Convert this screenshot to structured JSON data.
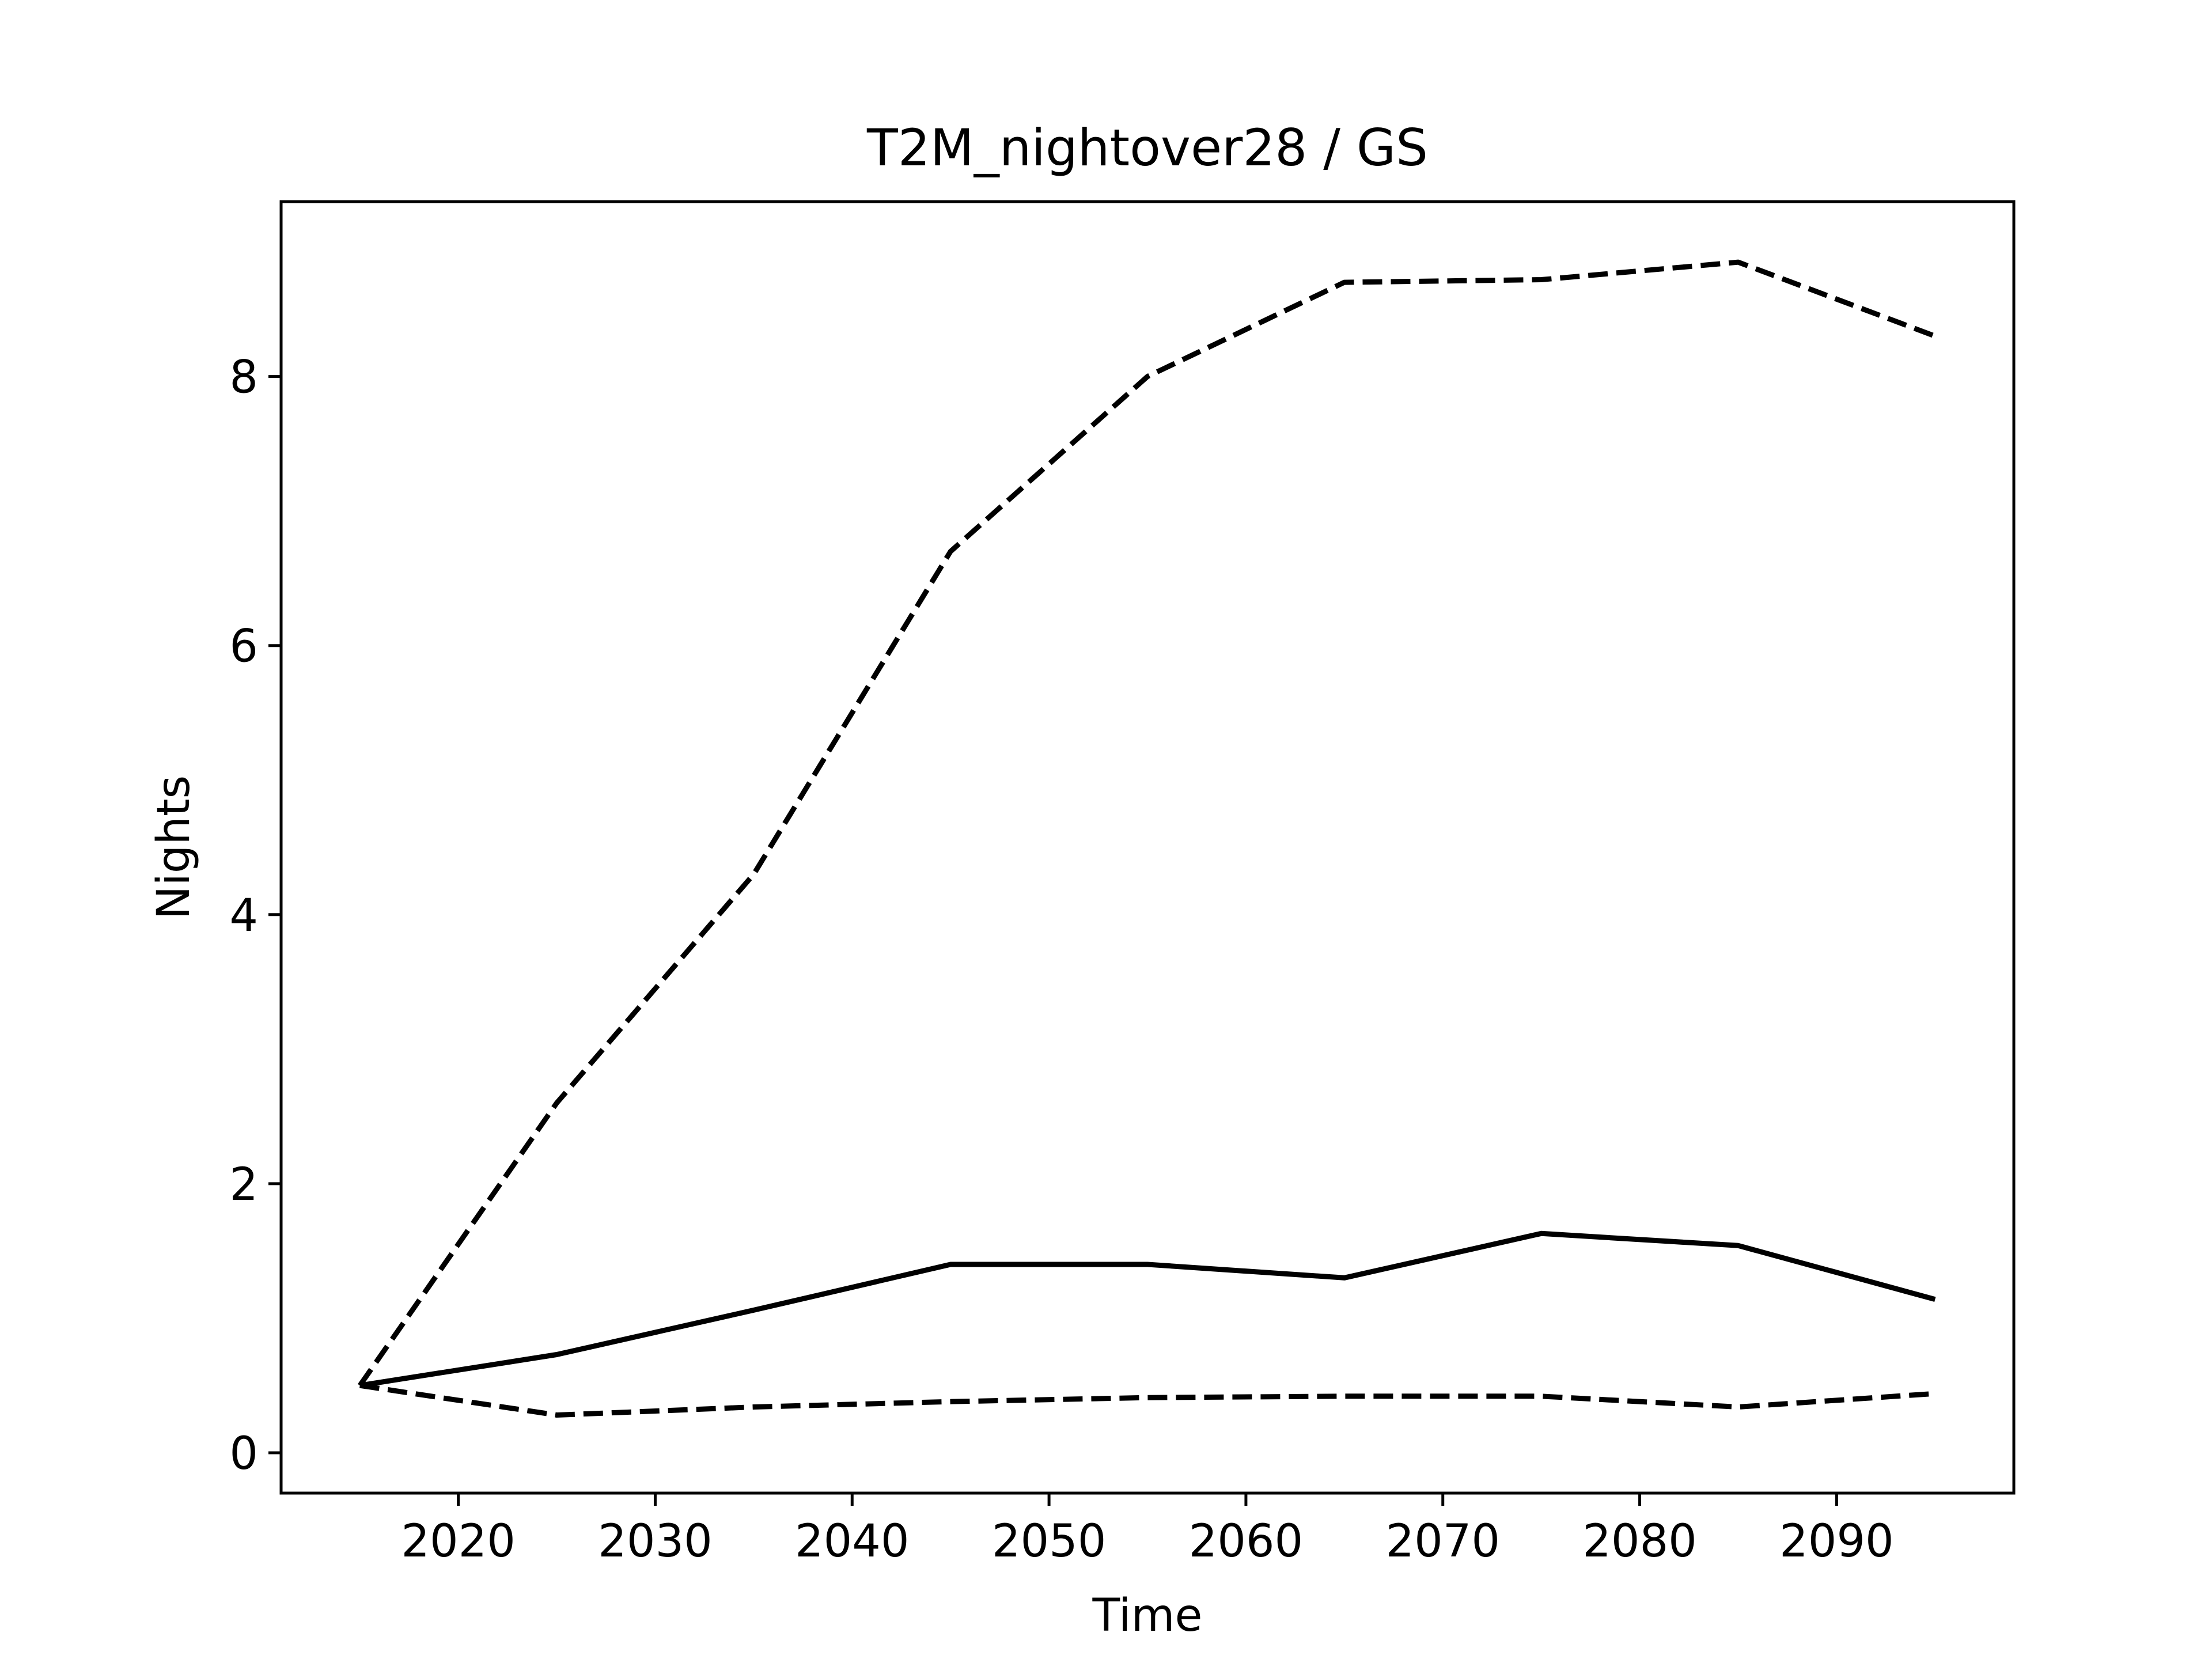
{
  "chart_data": {
    "type": "line",
    "title": "T2M_nightover28 / GS",
    "xlabel": "Time",
    "ylabel": "Nights",
    "xlim": [
      2011,
      2099
    ],
    "ylim": [
      -0.3,
      9.3
    ],
    "xticks": [
      2020,
      2030,
      2040,
      2050,
      2060,
      2070,
      2080,
      2090
    ],
    "yticks": [
      0,
      2,
      4,
      6,
      8
    ],
    "grid": false,
    "legend": false,
    "line_color": "#000000",
    "series": [
      {
        "style": "solid",
        "x": [
          2015,
          2025,
          2035,
          2045,
          2055,
          2065,
          2075,
          2085,
          2095
        ],
        "y": [
          0.5,
          0.73,
          1.06,
          1.4,
          1.4,
          1.3,
          1.63,
          1.54,
          1.14
        ]
      },
      {
        "style": "dashed",
        "x": [
          2015,
          2025,
          2035,
          2045,
          2055,
          2065,
          2075,
          2085,
          2095
        ],
        "y": [
          0.5,
          2.6,
          4.3,
          6.7,
          8.0,
          8.7,
          8.72,
          8.85,
          8.3
        ]
      },
      {
        "style": "dashed",
        "x": [
          2015,
          2025,
          2035,
          2045,
          2055,
          2065,
          2075,
          2085,
          2095
        ],
        "y": [
          0.5,
          0.28,
          0.34,
          0.38,
          0.41,
          0.42,
          0.42,
          0.34,
          0.44
        ]
      }
    ]
  }
}
